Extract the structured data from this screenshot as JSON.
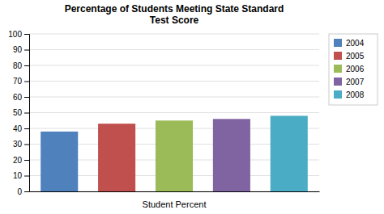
{
  "chart_data": {
    "type": "bar",
    "title": "Percentage of Students Meeting State Standard\nTest Score",
    "xlabel": "Student Percent",
    "categories": [
      "2004",
      "2005",
      "2006",
      "2007",
      "2008"
    ],
    "values": [
      38,
      43,
      45,
      46,
      48
    ],
    "colors": [
      "#4f81bd",
      "#c0504d",
      "#9bbb59",
      "#8064a2",
      "#4bacc6"
    ],
    "ylim": [
      0,
      100
    ],
    "yticks": [
      0,
      10,
      20,
      30,
      40,
      50,
      60,
      70,
      80,
      90,
      100
    ],
    "grid": true,
    "legend": "right",
    "tick_labels": "y"
  }
}
